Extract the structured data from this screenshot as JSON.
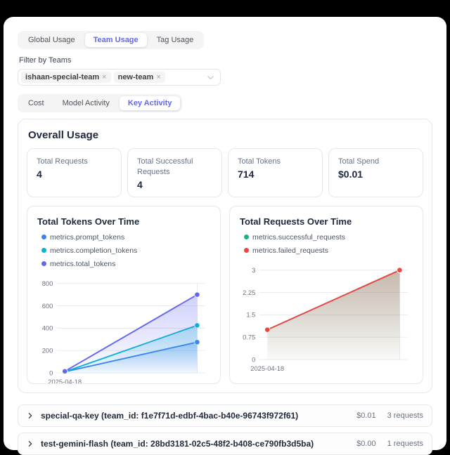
{
  "top_tabs": {
    "items": [
      {
        "label": "Global Usage",
        "active": false
      },
      {
        "label": "Team Usage",
        "active": true
      },
      {
        "label": "Tag Usage",
        "active": false
      }
    ]
  },
  "filter": {
    "label": "Filter by Teams",
    "tags": [
      {
        "text": "ishaan-special-team",
        "remove_glyph": "×"
      },
      {
        "text": "new-team",
        "remove_glyph": "×"
      }
    ]
  },
  "sub_tabs": {
    "items": [
      {
        "label": "Cost",
        "active": false
      },
      {
        "label": "Model Activity",
        "active": false
      },
      {
        "label": "Key Activity",
        "active": true
      }
    ]
  },
  "overall": {
    "title": "Overall Usage",
    "stats": [
      {
        "label": "Total Requests",
        "value": "4"
      },
      {
        "label": "Total Successful Requests",
        "value": "4"
      },
      {
        "label": "Total Tokens",
        "value": "714"
      },
      {
        "label": "Total Spend",
        "value": "$0.01"
      }
    ]
  },
  "chart_data": [
    {
      "type": "area",
      "title": "Total Tokens Over Time",
      "x_tick_labels": [
        "2025-04-18"
      ],
      "points": 2,
      "ylim": [
        0,
        800
      ],
      "yticks": [
        0,
        200,
        400,
        600,
        800
      ],
      "grid": true,
      "legend_position": "top",
      "series": [
        {
          "name": "metrics.prompt_tokens",
          "color": "#3b82f6",
          "values": [
            10,
            275
          ]
        },
        {
          "name": "metrics.completion_tokens",
          "color": "#06b6d4",
          "values": [
            10,
            425
          ]
        },
        {
          "name": "metrics.total_tokens",
          "color": "#6366f1",
          "values": [
            14,
            700
          ]
        }
      ]
    },
    {
      "type": "area",
      "title": "Total Requests Over Time",
      "x_tick_labels": [
        "2025-04-18"
      ],
      "points": 2,
      "ylim": [
        0,
        3
      ],
      "yticks": [
        0,
        0.75,
        1.5,
        2.25,
        3
      ],
      "grid": true,
      "legend_position": "top",
      "series": [
        {
          "name": "metrics.successful_requests",
          "color": "#10b981",
          "values": [
            1,
            3
          ]
        },
        {
          "name": "metrics.failed_requests",
          "color": "#ef4444",
          "values": [
            1,
            3
          ]
        }
      ]
    }
  ],
  "key_rows": [
    {
      "name": "special-qa-key (team_id: f1e7f71d-edbf-4bac-b40e-96743f972f61)",
      "spend": "$0.01",
      "requests": "3 requests"
    },
    {
      "name": "test-gemini-flash (team_id: 28bd3181-02c5-48f2-b408-ce790fb3d5ba)",
      "spend": "$0.00",
      "requests": "1 requests"
    }
  ],
  "colors": {
    "accent": "#6366f1",
    "grid_line": "#e5e7eb",
    "axis_text": "#6b7280",
    "prompt_tokens": "#3b82f6",
    "completion_tokens": "#06b6d4",
    "total_tokens": "#6366f1",
    "successful_requests": "#10b981",
    "failed_requests": "#ef4444"
  }
}
